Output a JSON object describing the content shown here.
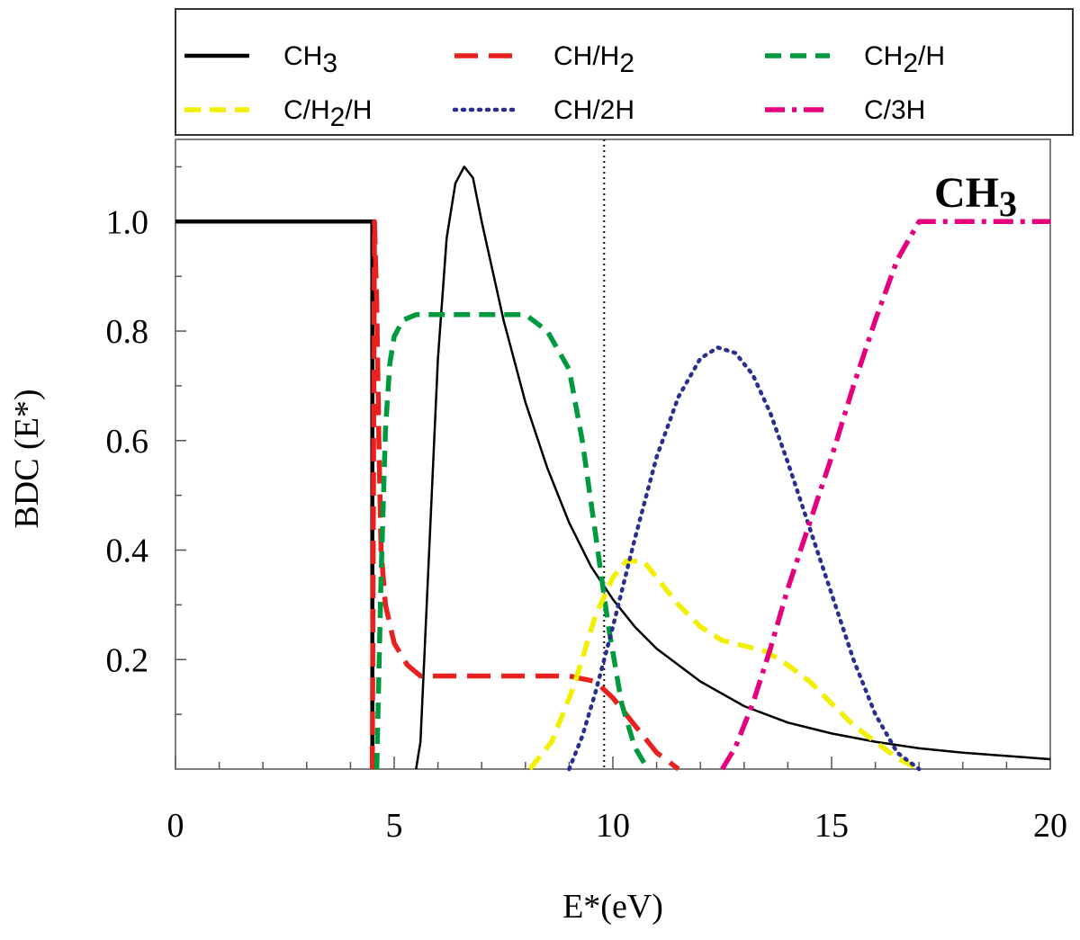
{
  "chart_data": {
    "type": "line",
    "title": "",
    "xlabel": "E*(eV)",
    "ylabel": "BDC (E*)",
    "xlim": [
      0,
      20
    ],
    "ylim": [
      0,
      1.15
    ],
    "xticks": [
      0,
      5,
      10,
      15,
      20
    ],
    "xtick_labels": [
      "0",
      "5",
      "10",
      "15",
      "20"
    ],
    "yticks": [
      0.2,
      0.4,
      0.6,
      0.8,
      1.0
    ],
    "ytick_labels": [
      "0.2",
      "0.4",
      "0.6",
      "0.8",
      "1.0"
    ],
    "grid": false,
    "legend_placement": "top",
    "annotation": {
      "text_main": "CH",
      "text_sub": "3",
      "placement": "top-right"
    },
    "reference_line": {
      "x": 9.8,
      "style": "dotted",
      "color": "#000000"
    },
    "series": [
      {
        "name_main": "CH",
        "name_sub": "3",
        "name_tail": "",
        "color": "#000000",
        "style": "solid",
        "x": [
          0,
          4.5,
          4.5,
          4.5
        ],
        "y": [
          1.0,
          1.0,
          0.5,
          0.0
        ]
      },
      {
        "name_main": "CH",
        "name_sub": "3",
        "name_tail": "",
        "color": "#000000",
        "style": "solid-thin",
        "x": [
          5.5,
          5.6,
          5.8,
          6.0,
          6.2,
          6.4,
          6.6,
          6.8,
          7.0,
          7.5,
          8.0,
          8.5,
          9.0,
          9.5,
          10.0,
          10.5,
          11.0,
          12.0,
          13.0,
          14.0,
          15.0,
          16.0,
          17.0,
          18.0,
          19.0,
          20.0
        ],
        "y": [
          0.0,
          0.05,
          0.4,
          0.75,
          0.97,
          1.07,
          1.1,
          1.08,
          1.0,
          0.82,
          0.67,
          0.55,
          0.45,
          0.37,
          0.31,
          0.26,
          0.22,
          0.16,
          0.115,
          0.085,
          0.065,
          0.05,
          0.038,
          0.03,
          0.024,
          0.018
        ]
      },
      {
        "name_main": "CH/H",
        "name_sub": "2",
        "name_tail": "",
        "color": "#e8201e",
        "style": "long-dash",
        "x": [
          4.5,
          4.55,
          4.6,
          4.65,
          4.7,
          4.8,
          5.0,
          5.3,
          5.6,
          6.0,
          7.0,
          8.0,
          9.0,
          9.6,
          10.0,
          10.5,
          11.0,
          11.5
        ],
        "y": [
          0.0,
          1.0,
          0.85,
          0.6,
          0.4,
          0.3,
          0.23,
          0.19,
          0.17,
          0.17,
          0.17,
          0.17,
          0.17,
          0.16,
          0.13,
          0.08,
          0.03,
          0.0
        ]
      },
      {
        "name_main": "CH",
        "name_sub": "2",
        "name_tail": "/H",
        "color": "#009a3e",
        "style": "dash",
        "x": [
          4.6,
          4.7,
          4.8,
          4.9,
          5.0,
          5.2,
          5.5,
          6.0,
          7.0,
          8.0,
          8.5,
          9.0,
          9.3,
          9.6,
          9.9,
          10.2,
          10.5,
          10.8
        ],
        "y": [
          0.0,
          0.35,
          0.62,
          0.74,
          0.79,
          0.82,
          0.83,
          0.83,
          0.83,
          0.83,
          0.8,
          0.73,
          0.6,
          0.43,
          0.26,
          0.12,
          0.04,
          0.0
        ]
      },
      {
        "name_main": "C/H",
        "name_sub": "2",
        "name_tail": "/H",
        "color": "#f2ef00",
        "style": "dash",
        "x": [
          8.1,
          8.6,
          9.1,
          9.6,
          10.0,
          10.3,
          10.7,
          11.0,
          11.5,
          12.0,
          12.5,
          13.0,
          13.5,
          14.0,
          14.5,
          15.0,
          15.5,
          16.0,
          16.5,
          17.0
        ],
        "y": [
          0.0,
          0.05,
          0.15,
          0.28,
          0.35,
          0.38,
          0.38,
          0.35,
          0.3,
          0.26,
          0.235,
          0.225,
          0.215,
          0.19,
          0.16,
          0.12,
          0.08,
          0.05,
          0.02,
          0.0
        ]
      },
      {
        "name_main": "CH/2H",
        "name_sub": "",
        "name_tail": "",
        "color": "#2a2f8f",
        "style": "dotted",
        "x": [
          9.0,
          9.3,
          9.6,
          10.0,
          10.5,
          11.0,
          11.5,
          12.0,
          12.4,
          12.8,
          13.2,
          13.6,
          14.0,
          14.5,
          15.0,
          15.5,
          16.0,
          16.5,
          17.0
        ],
        "y": [
          0.0,
          0.06,
          0.14,
          0.26,
          0.42,
          0.57,
          0.68,
          0.75,
          0.77,
          0.76,
          0.72,
          0.65,
          0.56,
          0.44,
          0.32,
          0.2,
          0.1,
          0.03,
          0.0
        ]
      },
      {
        "name_main": "C/3H",
        "name_sub": "",
        "name_tail": "",
        "color": "#e5007e",
        "style": "dash-dot",
        "x": [
          12.5,
          12.8,
          13.2,
          13.6,
          14.0,
          14.5,
          15.0,
          15.5,
          16.0,
          16.5,
          17.0,
          17.5,
          18.0,
          19.0,
          20.0
        ],
        "y": [
          0.0,
          0.04,
          0.12,
          0.22,
          0.33,
          0.45,
          0.57,
          0.7,
          0.82,
          0.93,
          1.0,
          1.0,
          1.0,
          1.0,
          1.0
        ]
      }
    ],
    "legend": [
      {
        "main": "CH",
        "sub": "3",
        "tail": "",
        "color": "#000000",
        "style": "solid"
      },
      {
        "main": "CH/H",
        "sub": "2",
        "tail": "",
        "color": "#e8201e",
        "style": "long-dash"
      },
      {
        "main": "CH",
        "sub": "2",
        "tail": "/H",
        "color": "#009a3e",
        "style": "dash"
      },
      {
        "main": "C/H",
        "sub": "2",
        "tail": "/H",
        "color": "#f2ef00",
        "style": "dash"
      },
      {
        "main": "CH/2H",
        "sub": "",
        "tail": "",
        "color": "#2a2f8f",
        "style": "dotted"
      },
      {
        "main": "C/3H",
        "sub": "",
        "tail": "",
        "color": "#e5007e",
        "style": "dash-dot"
      }
    ]
  }
}
